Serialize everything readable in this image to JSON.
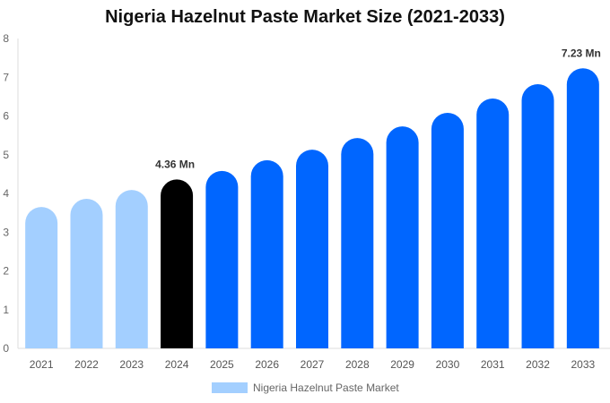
{
  "chart_data": {
    "type": "bar",
    "title": "Nigeria Hazelnut Paste Market Size (2021-2033)",
    "categories": [
      "2021",
      "2022",
      "2023",
      "2024",
      "2025",
      "2026",
      "2027",
      "2028",
      "2029",
      "2030",
      "2031",
      "2032",
      "2033"
    ],
    "series": [
      {
        "name": "Nigeria Hazelnut Paste Market",
        "values": [
          3.65,
          3.86,
          4.09,
          4.36,
          4.58,
          4.86,
          5.13,
          5.43,
          5.73,
          6.08,
          6.45,
          6.82,
          7.23
        ]
      }
    ],
    "ylim": [
      0,
      8
    ],
    "yticks": [
      0,
      1,
      2,
      3,
      4,
      5,
      6,
      7,
      8
    ],
    "xlabel": "",
    "ylabel": "",
    "grid": false,
    "legend": "bottom",
    "data_labels": {
      "3": "4.36 Mn",
      "12": "7.23 Mn"
    },
    "colors": {
      "historical": "#a3cfff",
      "base_year": "#000000",
      "forecast": "#0066ff"
    },
    "bar_color_groups": [
      "historical",
      "historical",
      "historical",
      "base_year",
      "forecast",
      "forecast",
      "forecast",
      "forecast",
      "forecast",
      "forecast",
      "forecast",
      "forecast",
      "forecast"
    ]
  }
}
